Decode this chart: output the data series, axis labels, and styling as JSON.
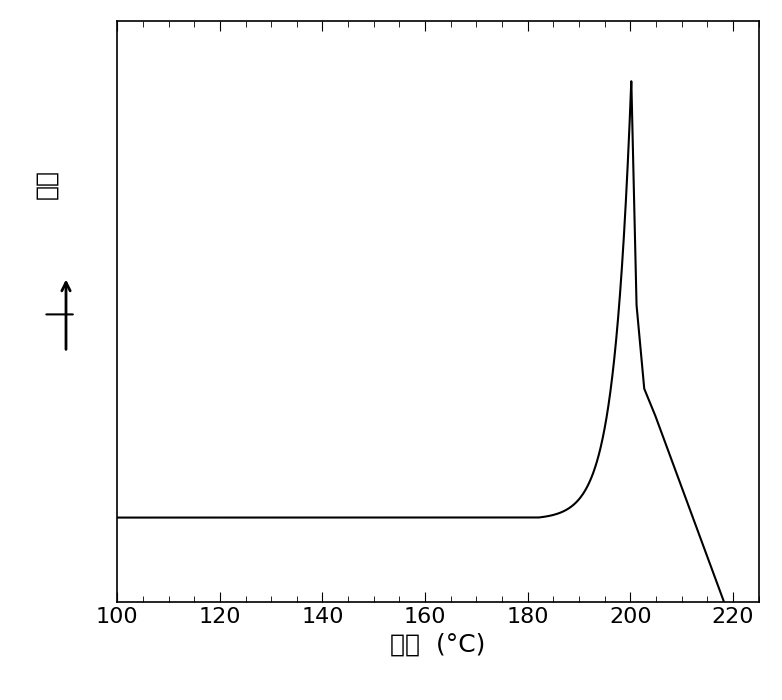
{
  "x_min": 100,
  "x_max": 225,
  "x_ticks": [
    100,
    120,
    140,
    160,
    180,
    200,
    220
  ],
  "x_label_cn": "温度",
  "x_label_unit": "(°C)",
  "y_label_cn": "吸热",
  "line_color": "#000000",
  "line_width": 1.5,
  "background_color": "#ffffff"
}
